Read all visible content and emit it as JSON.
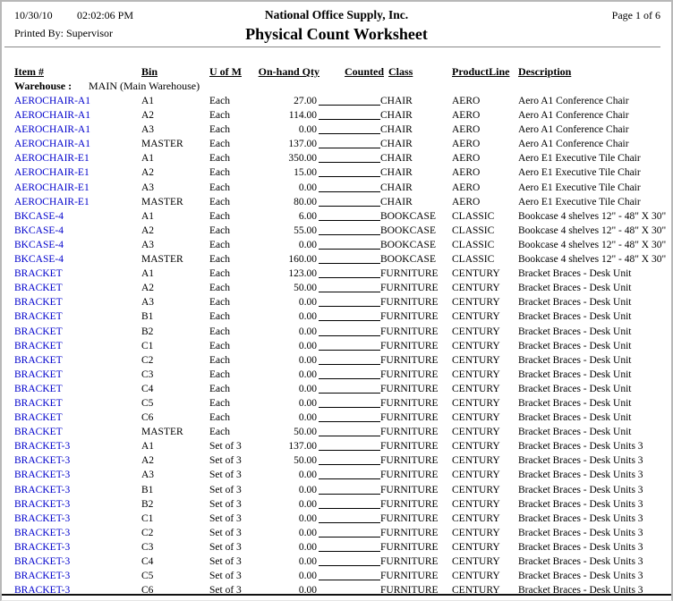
{
  "header": {
    "date": "10/30/10",
    "time": "02:02:06 PM",
    "company": "National Office Supply, Inc.",
    "page_indicator": "Page 1 of 6",
    "printed_by": "Printed By: Supervisor",
    "title": "Physical Count Worksheet"
  },
  "columns": {
    "item": "Item #",
    "bin": "Bin",
    "uom": "U of M",
    "qty": "On-hand Qty",
    "counted": "Counted",
    "class": "Class",
    "product_line": "ProductLine",
    "description": "Description"
  },
  "warehouse": {
    "label": "Warehouse :",
    "value": "MAIN (Main Warehouse)"
  },
  "colors": {
    "item_link": "#0000CC",
    "header_rule": "#888888",
    "bottom_rule": "#111111",
    "text": "#000000"
  },
  "rows": [
    {
      "item": "AEROCHAIR-A1",
      "bin": "A1",
      "uom": "Each",
      "qty": "27.00",
      "class": "CHAIR",
      "product_line": "AERO",
      "description": "Aero A1 Conference Chair"
    },
    {
      "item": "AEROCHAIR-A1",
      "bin": "A2",
      "uom": "Each",
      "qty": "114.00",
      "class": "CHAIR",
      "product_line": "AERO",
      "description": "Aero A1 Conference Chair"
    },
    {
      "item": "AEROCHAIR-A1",
      "bin": "A3",
      "uom": "Each",
      "qty": "0.00",
      "class": "CHAIR",
      "product_line": "AERO",
      "description": "Aero A1 Conference Chair"
    },
    {
      "item": "AEROCHAIR-A1",
      "bin": "MASTER",
      "uom": "Each",
      "qty": "137.00",
      "class": "CHAIR",
      "product_line": "AERO",
      "description": "Aero A1 Conference Chair"
    },
    {
      "item": "AEROCHAIR-E1",
      "bin": "A1",
      "uom": "Each",
      "qty": "350.00",
      "class": "CHAIR",
      "product_line": "AERO",
      "description": "Aero E1 Executive Tile Chair"
    },
    {
      "item": "AEROCHAIR-E1",
      "bin": "A2",
      "uom": "Each",
      "qty": "15.00",
      "class": "CHAIR",
      "product_line": "AERO",
      "description": "Aero E1 Executive Tile Chair"
    },
    {
      "item": "AEROCHAIR-E1",
      "bin": "A3",
      "uom": "Each",
      "qty": "0.00",
      "class": "CHAIR",
      "product_line": "AERO",
      "description": "Aero E1 Executive Tile Chair"
    },
    {
      "item": "AEROCHAIR-E1",
      "bin": "MASTER",
      "uom": "Each",
      "qty": "80.00",
      "class": "CHAIR",
      "product_line": "AERO",
      "description": "Aero E1 Executive Tile Chair"
    },
    {
      "item": "BKCASE-4",
      "bin": "A1",
      "uom": "Each",
      "qty": "6.00",
      "class": "BOOKCASE",
      "product_line": "CLASSIC",
      "description": "Bookcase 4 shelves 12\" - 48\" X 30\""
    },
    {
      "item": "BKCASE-4",
      "bin": "A2",
      "uom": "Each",
      "qty": "55.00",
      "class": "BOOKCASE",
      "product_line": "CLASSIC",
      "description": "Bookcase 4 shelves 12\" - 48\" X 30\""
    },
    {
      "item": "BKCASE-4",
      "bin": "A3",
      "uom": "Each",
      "qty": "0.00",
      "class": "BOOKCASE",
      "product_line": "CLASSIC",
      "description": "Bookcase 4 shelves 12\" - 48\" X 30\""
    },
    {
      "item": "BKCASE-4",
      "bin": "MASTER",
      "uom": "Each",
      "qty": "160.00",
      "class": "BOOKCASE",
      "product_line": "CLASSIC",
      "description": "Bookcase 4 shelves 12\" - 48\" X 30\""
    },
    {
      "item": "BRACKET",
      "bin": "A1",
      "uom": "Each",
      "qty": "123.00",
      "class": "FURNITURE",
      "product_line": "CENTURY",
      "description": "Bracket Braces - Desk Unit"
    },
    {
      "item": "BRACKET",
      "bin": "A2",
      "uom": "Each",
      "qty": "50.00",
      "class": "FURNITURE",
      "product_line": "CENTURY",
      "description": "Bracket Braces - Desk Unit"
    },
    {
      "item": "BRACKET",
      "bin": "A3",
      "uom": "Each",
      "qty": "0.00",
      "class": "FURNITURE",
      "product_line": "CENTURY",
      "description": "Bracket Braces - Desk Unit"
    },
    {
      "item": "BRACKET",
      "bin": "B1",
      "uom": "Each",
      "qty": "0.00",
      "class": "FURNITURE",
      "product_line": "CENTURY",
      "description": "Bracket Braces - Desk Unit"
    },
    {
      "item": "BRACKET",
      "bin": "B2",
      "uom": "Each",
      "qty": "0.00",
      "class": "FURNITURE",
      "product_line": "CENTURY",
      "description": "Bracket Braces - Desk Unit"
    },
    {
      "item": "BRACKET",
      "bin": "C1",
      "uom": "Each",
      "qty": "0.00",
      "class": "FURNITURE",
      "product_line": "CENTURY",
      "description": "Bracket Braces - Desk Unit"
    },
    {
      "item": "BRACKET",
      "bin": "C2",
      "uom": "Each",
      "qty": "0.00",
      "class": "FURNITURE",
      "product_line": "CENTURY",
      "description": "Bracket Braces - Desk Unit"
    },
    {
      "item": "BRACKET",
      "bin": "C3",
      "uom": "Each",
      "qty": "0.00",
      "class": "FURNITURE",
      "product_line": "CENTURY",
      "description": "Bracket Braces - Desk Unit"
    },
    {
      "item": "BRACKET",
      "bin": "C4",
      "uom": "Each",
      "qty": "0.00",
      "class": "FURNITURE",
      "product_line": "CENTURY",
      "description": "Bracket Braces - Desk Unit"
    },
    {
      "item": "BRACKET",
      "bin": "C5",
      "uom": "Each",
      "qty": "0.00",
      "class": "FURNITURE",
      "product_line": "CENTURY",
      "description": "Bracket Braces - Desk Unit"
    },
    {
      "item": "BRACKET",
      "bin": "C6",
      "uom": "Each",
      "qty": "0.00",
      "class": "FURNITURE",
      "product_line": "CENTURY",
      "description": "Bracket Braces - Desk Unit"
    },
    {
      "item": "BRACKET",
      "bin": "MASTER",
      "uom": "Each",
      "qty": "50.00",
      "class": "FURNITURE",
      "product_line": "CENTURY",
      "description": "Bracket Braces - Desk Unit"
    },
    {
      "item": "BRACKET-3",
      "bin": "A1",
      "uom": "Set of 3",
      "qty": "137.00",
      "class": "FURNITURE",
      "product_line": "CENTURY",
      "description": "Bracket Braces - Desk Units 3"
    },
    {
      "item": "BRACKET-3",
      "bin": "A2",
      "uom": "Set of 3",
      "qty": "50.00",
      "class": "FURNITURE",
      "product_line": "CENTURY",
      "description": "Bracket Braces - Desk Units 3"
    },
    {
      "item": "BRACKET-3",
      "bin": "A3",
      "uom": "Set of 3",
      "qty": "0.00",
      "class": "FURNITURE",
      "product_line": "CENTURY",
      "description": "Bracket Braces - Desk Units 3"
    },
    {
      "item": "BRACKET-3",
      "bin": "B1",
      "uom": "Set of 3",
      "qty": "0.00",
      "class": "FURNITURE",
      "product_line": "CENTURY",
      "description": "Bracket Braces - Desk Units 3"
    },
    {
      "item": "BRACKET-3",
      "bin": "B2",
      "uom": "Set of 3",
      "qty": "0.00",
      "class": "FURNITURE",
      "product_line": "CENTURY",
      "description": "Bracket Braces - Desk Units 3"
    },
    {
      "item": "BRACKET-3",
      "bin": "C1",
      "uom": "Set of 3",
      "qty": "0.00",
      "class": "FURNITURE",
      "product_line": "CENTURY",
      "description": "Bracket Braces - Desk Units 3"
    },
    {
      "item": "BRACKET-3",
      "bin": "C2",
      "uom": "Set of 3",
      "qty": "0.00",
      "class": "FURNITURE",
      "product_line": "CENTURY",
      "description": "Bracket Braces - Desk Units 3"
    },
    {
      "item": "BRACKET-3",
      "bin": "C3",
      "uom": "Set of 3",
      "qty": "0.00",
      "class": "FURNITURE",
      "product_line": "CENTURY",
      "description": "Bracket Braces - Desk Units 3"
    },
    {
      "item": "BRACKET-3",
      "bin": "C4",
      "uom": "Set of 3",
      "qty": "0.00",
      "class": "FURNITURE",
      "product_line": "CENTURY",
      "description": "Bracket Braces - Desk Units 3"
    },
    {
      "item": "BRACKET-3",
      "bin": "C5",
      "uom": "Set of 3",
      "qty": "0.00",
      "class": "FURNITURE",
      "product_line": "CENTURY",
      "description": "Bracket Braces - Desk Units 3"
    },
    {
      "item": "BRACKET-3",
      "bin": "C6",
      "uom": "Set of 3",
      "qty": "0.00",
      "class": "FURNITURE",
      "product_line": "CENTURY",
      "description": "Bracket Braces - Desk Units 3"
    }
  ]
}
